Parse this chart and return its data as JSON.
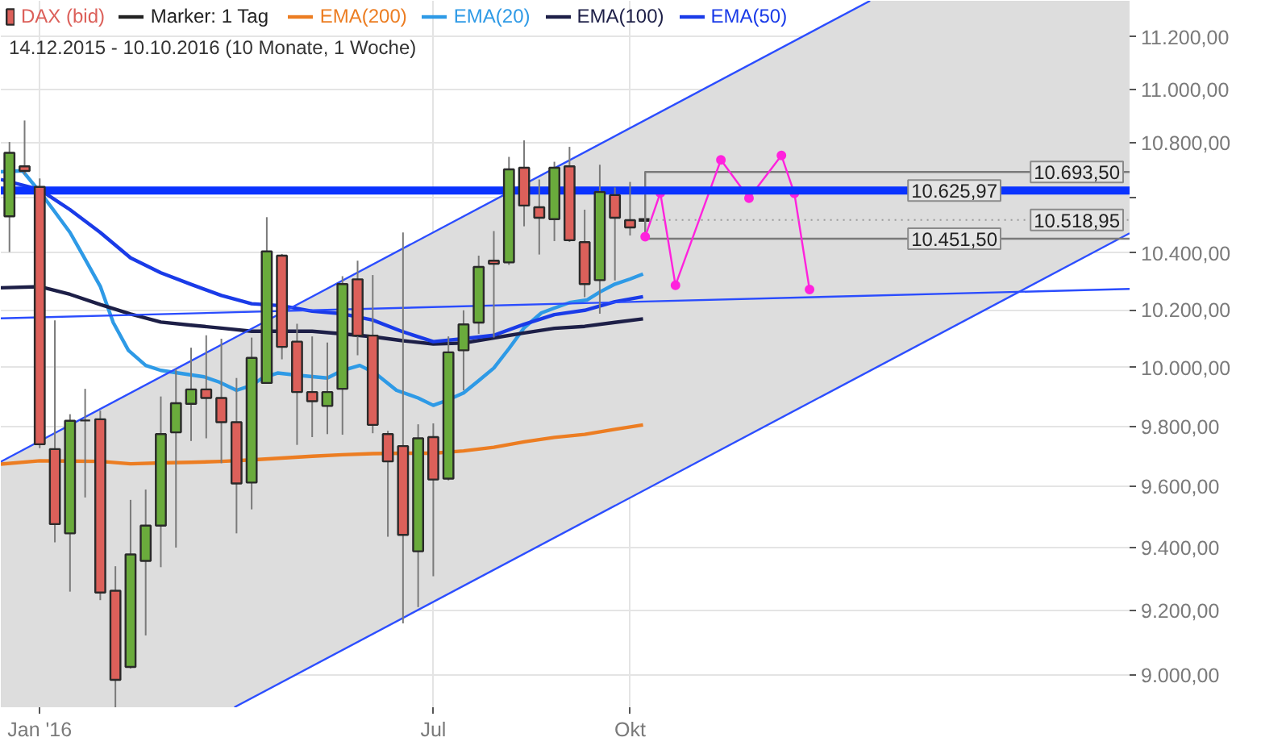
{
  "chart_data": {
    "type": "candlestick",
    "subtitle": "14.12.2015 - 10.10.2016 (10 Monate, 1 Woche)",
    "xlim": [
      "2015-12-17",
      "2017-05-22"
    ],
    "xticks": [
      {
        "value": "2016-01-04",
        "label": "Jan '16"
      },
      {
        "value": "2016-07-04",
        "label": "Jul"
      },
      {
        "value": "2016-10-03",
        "label": "Okt"
      }
    ],
    "ylim": [
      8900,
      11340
    ],
    "yticks": [
      {
        "value": 9000,
        "label": "9.000,00"
      },
      {
        "value": 9200,
        "label": "9.200,00"
      },
      {
        "value": 9400,
        "label": "9.400,00"
      },
      {
        "value": 9600,
        "label": "9.600,00"
      },
      {
        "value": 9800,
        "label": "9.800,00"
      },
      {
        "value": 10000,
        "label": "10.000,00"
      },
      {
        "value": 10200,
        "label": "10.200,00"
      },
      {
        "value": 10400,
        "label": "10.400,00"
      },
      {
        "value": 10600,
        "label": null
      },
      {
        "value": 10800,
        "label": "10.800,00"
      },
      {
        "value": 11000,
        "label": "11.000,00"
      },
      {
        "value": 11200,
        "label": "11.200,00"
      }
    ],
    "log": true,
    "grid": true,
    "legend": "top left",
    "series": [
      {
        "name": "DAX (bid)",
        "color": "#dc605a",
        "x": [
          "2015-12-21",
          "2015-12-28",
          "2016-01-04",
          "2016-01-11",
          "2016-01-18",
          "2016-01-25",
          "2016-02-01",
          "2016-02-08",
          "2016-02-15",
          "2016-02-22",
          "2016-02-29",
          "2016-03-07",
          "2016-03-14",
          "2016-03-21",
          "2016-03-28",
          "2016-04-04",
          "2016-04-11",
          "2016-04-18",
          "2016-04-25",
          "2016-05-02",
          "2016-05-09",
          "2016-05-16",
          "2016-05-23",
          "2016-05-30",
          "2016-06-06",
          "2016-06-13",
          "2016-06-20",
          "2016-06-27",
          "2016-07-04",
          "2016-07-11",
          "2016-07-18",
          "2016-07-25",
          "2016-08-01",
          "2016-08-08",
          "2016-08-15",
          "2016-08-22",
          "2016-08-29",
          "2016-09-05",
          "2016-09-12",
          "2016-09-19",
          "2016-09-26",
          "2016-10-03"
        ],
        "ohlc": [
          [
            10532,
            10804,
            10404,
            10764
          ],
          [
            10714,
            10884,
            10684,
            10697
          ],
          [
            10639,
            10670,
            9727,
            9740
          ],
          [
            9724,
            10163,
            9418,
            9477
          ],
          [
            9447,
            9841,
            9260,
            9819
          ],
          [
            9820,
            9927,
            9564,
            9820
          ],
          [
            9824,
            9853,
            9233,
            9257
          ],
          [
            9263,
            9341,
            8900,
            8984
          ],
          [
            9024,
            9556,
            9019,
            9379
          ],
          [
            9358,
            9590,
            9122,
            9472
          ],
          [
            9472,
            9901,
            9338,
            9774
          ],
          [
            9780,
            9995,
            9401,
            9878
          ],
          [
            9876,
            10068,
            9751,
            9925
          ],
          [
            9925,
            10111,
            9760,
            9896
          ],
          [
            9896,
            10099,
            9677,
            9814
          ],
          [
            9814,
            9964,
            9447,
            9610
          ],
          [
            9613,
            10103,
            9525,
            10033
          ],
          [
            9947,
            10529,
            9945,
            10406
          ],
          [
            10391,
            10397,
            10028,
            10071
          ],
          [
            10089,
            10151,
            9738,
            9916
          ],
          [
            9916,
            10107,
            9764,
            9885
          ],
          [
            9869,
            10086,
            9774,
            9916
          ],
          [
            9927,
            10318,
            9772,
            10290
          ],
          [
            10307,
            10373,
            10042,
            10110
          ],
          [
            10110,
            10322,
            9777,
            9805
          ],
          [
            9774,
            9785,
            9436,
            9683
          ],
          [
            9734,
            10474,
            9160,
            9442
          ],
          [
            9389,
            9807,
            9211,
            9760
          ],
          [
            9764,
            9810,
            9309,
            9623
          ],
          [
            9626,
            10107,
            9620,
            10052
          ],
          [
            10059,
            10198,
            9922,
            10149
          ],
          [
            10155,
            10391,
            10116,
            10351
          ],
          [
            10373,
            10479,
            10103,
            10362
          ],
          [
            10367,
            10749,
            10358,
            10703
          ],
          [
            10709,
            10810,
            10496,
            10571
          ],
          [
            10565,
            10666,
            10395,
            10527
          ],
          [
            10522,
            10731,
            10443,
            10709
          ],
          [
            10714,
            10786,
            10440,
            10446
          ],
          [
            10439,
            10556,
            10244,
            10290
          ],
          [
            10304,
            10720,
            10186,
            10620
          ],
          [
            10609,
            10637,
            10303,
            10527
          ],
          [
            10518,
            10657,
            10463,
            10492
          ]
        ],
        "colors": [
          "#6aab3c",
          "#dc605a",
          "#dc605a",
          "#dc605a",
          "#6aab3c",
          "#2a2a2a",
          "#dc605a",
          "#dc605a",
          "#6aab3c",
          "#6aab3c",
          "#6aab3c",
          "#6aab3c",
          "#6aab3c",
          "#dc605a",
          "#dc605a",
          "#dc605a",
          "#6aab3c",
          "#6aab3c",
          "#dc605a",
          "#dc605a",
          "#dc605a",
          "#6aab3c",
          "#6aab3c",
          "#dc605a",
          "#dc605a",
          "#dc605a",
          "#dc605a",
          "#6aab3c",
          "#dc605a",
          "#6aab3c",
          "#6aab3c",
          "#6aab3c",
          "#dc605a",
          "#6aab3c",
          "#dc605a",
          "#dc605a",
          "#6aab3c",
          "#dc605a",
          "#dc605a",
          "#6aab3c",
          "#dc605a",
          "#dc605a"
        ]
      },
      {
        "name": "Marker: 1 Tag",
        "type": "line",
        "color": "#222222",
        "x": [
          "2016-10-07",
          "2016-10-12"
        ],
        "values": [
          10518.95,
          10518.95
        ]
      },
      {
        "name": "EMA(200)",
        "type": "line",
        "color": "#ec7d22",
        "x": [
          "2015-12-17",
          "2016-01-04",
          "2016-01-18",
          "2016-02-01",
          "2016-02-15",
          "2016-02-29",
          "2016-03-14",
          "2016-03-28",
          "2016-04-11",
          "2016-04-25",
          "2016-05-09",
          "2016-05-23",
          "2016-06-06",
          "2016-06-20",
          "2016-07-04",
          "2016-07-18",
          "2016-08-01",
          "2016-08-15",
          "2016-08-29",
          "2016-09-12",
          "2016-09-26",
          "2016-10-09"
        ],
        "values": [
          9674,
          9685,
          9684,
          9683,
          9675,
          9678,
          9680,
          9683,
          9688,
          9694,
          9700,
          9705,
          9709,
          9710,
          9710,
          9718,
          9730,
          9748,
          9763,
          9773,
          9790,
          9805
        ]
      },
      {
        "name": "EMA(20)",
        "type": "line",
        "color": "#2e9ae6",
        "x": [
          "2015-12-17",
          "2015-12-27",
          "2016-01-05",
          "2016-01-11",
          "2016-01-18",
          "2016-01-24",
          "2016-02-01",
          "2016-02-07",
          "2016-02-14",
          "2016-02-22",
          "2016-02-29",
          "2016-03-08",
          "2016-03-20",
          "2016-03-27",
          "2016-04-04",
          "2016-04-11",
          "2016-04-16",
          "2016-04-23",
          "2016-05-03",
          "2016-05-16",
          "2016-05-23",
          "2016-05-31",
          "2016-06-07",
          "2016-06-17",
          "2016-06-27",
          "2016-07-04",
          "2016-07-10",
          "2016-07-18",
          "2016-07-25",
          "2016-08-01",
          "2016-08-08",
          "2016-08-15",
          "2016-08-23",
          "2016-08-29",
          "2016-09-05",
          "2016-09-13",
          "2016-09-19",
          "2016-09-26",
          "2016-10-03",
          "2016-10-09"
        ],
        "values": [
          10694,
          10698,
          10611,
          10548,
          10474,
          10392,
          10282,
          10155,
          10059,
          10007,
          9990,
          9981,
          9968,
          9950,
          9922,
          9939,
          9964,
          9981,
          9973,
          9964,
          9990,
          10007,
          9981,
          9922,
          9896,
          9871,
          9887,
          9913,
          9955,
          9998,
          10065,
          10137,
          10189,
          10206,
          10225,
          10234,
          10262,
          10290,
          10308,
          10326
        ]
      },
      {
        "name": "EMA(100)",
        "type": "line",
        "color": "#1d1f47",
        "x": [
          "2015-12-17",
          "2016-01-04",
          "2016-01-18",
          "2016-02-01",
          "2016-02-15",
          "2016-02-29",
          "2016-03-14",
          "2016-03-28",
          "2016-04-11",
          "2016-04-25",
          "2016-05-09",
          "2016-05-23",
          "2016-06-06",
          "2016-06-20",
          "2016-07-04",
          "2016-07-18",
          "2016-08-01",
          "2016-08-15",
          "2016-08-29",
          "2016-09-12",
          "2016-09-26",
          "2016-10-09"
        ],
        "values": [
          10277,
          10281,
          10254,
          10218,
          10185,
          10157,
          10146,
          10136,
          10125,
          10125,
          10125,
          10116,
          10106,
          10092,
          10081,
          10084,
          10102,
          10119,
          10135,
          10142,
          10156,
          10168
        ]
      },
      {
        "name": "EMA(50)",
        "type": "line",
        "color": "#1a3be8",
        "x": [
          "2015-12-17",
          "2016-01-04",
          "2016-01-18",
          "2016-02-01",
          "2016-02-15",
          "2016-02-29",
          "2016-03-14",
          "2016-03-28",
          "2016-04-11",
          "2016-04-25",
          "2016-05-09",
          "2016-05-23",
          "2016-06-06",
          "2016-06-20",
          "2016-07-04",
          "2016-07-18",
          "2016-08-01",
          "2016-08-15",
          "2016-08-29",
          "2016-09-12",
          "2016-09-26",
          "2016-10-09"
        ],
        "values": [
          10666,
          10629,
          10556,
          10474,
          10383,
          10330,
          10289,
          10250,
          10221,
          10214,
          10195,
          10186,
          10164,
          10123,
          10089,
          10099,
          10111,
          10149,
          10183,
          10198,
          10228,
          10246
        ]
      },
      {
        "type": "line",
        "color": "#2b4dff",
        "x": [
          "2015-12-17",
          "2016-04-03",
          "2017-01-22",
          "2017-05-22"
        ],
        "values": [
          9682,
          10102,
          11340,
          null
        ],
        "lower": [
          8900,
          8900,
          9990,
          10471
        ],
        "upper": [
          9682,
          10102,
          11340,
          11340
        ]
      },
      {
        "type": "line",
        "color": "#2c4eff",
        "x": [
          "2016-04-03",
          "2017-05-22"
        ],
        "values": [
          8900,
          10471
        ]
      },
      {
        "type": "line",
        "color": "#2a4cfe",
        "x": [
          "2015-12-17",
          "2017-05-22"
        ],
        "values": [
          10170,
          10273
        ]
      },
      {
        "type": "line",
        "color": "#7a7a7a",
        "x": [
          "2017-05-22",
          "2016-10-10",
          "2016-10-10",
          "2017-05-22"
        ],
        "values": [
          10693.5,
          10693.5,
          10451.5,
          10451.5
        ]
      },
      {
        "type": "line",
        "color": "#ff22dd",
        "marker": "circle",
        "x": [
          "2016-10-10",
          "2016-10-17",
          "2016-10-24",
          "2016-11-14",
          "2016-11-27",
          "2016-12-12",
          "2016-12-18",
          "2016-12-25"
        ],
        "values": [
          10459,
          10617,
          10286,
          10738,
          10598,
          10754,
          10615,
          10271
        ]
      }
    ],
    "ref_lines": [
      {
        "axis": "y",
        "value": 10625.97,
        "label": "10.625,97",
        "color": "#0a33ff"
      }
    ],
    "annotations": [
      {
        "text": "10.693,50",
        "y": 10693.5
      },
      {
        "text": "10.518,95",
        "x": "2016-10-12",
        "y": 10518.95
      },
      {
        "text": "10.451,50",
        "y": 10451.5
      }
    ]
  }
}
